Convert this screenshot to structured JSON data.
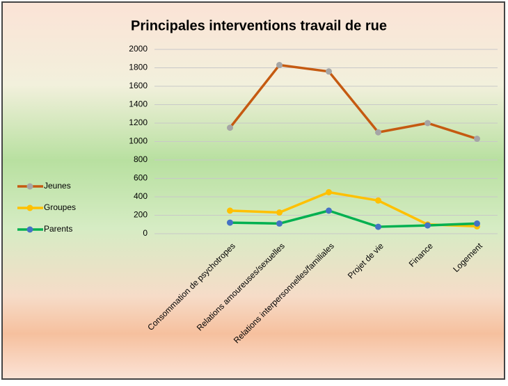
{
  "chart_data": {
    "type": "line",
    "title": "Principales interventions travail de rue",
    "categories": [
      "Consommation de psychotropes",
      "Relations amoureuses/sexuelles",
      "Relations interpersonnelles/familiales",
      "Projet de vie",
      "Finance",
      "Logement"
    ],
    "series": [
      {
        "name": "Jeunes",
        "color": "#c55a11",
        "marker_color": "#a5a5a5",
        "values": [
          1150,
          1830,
          1760,
          1100,
          1200,
          1030
        ]
      },
      {
        "name": "Groupes",
        "color": "#ffc000",
        "marker_color": "#ffc000",
        "values": [
          250,
          230,
          450,
          360,
          100,
          80
        ]
      },
      {
        "name": "Parents",
        "color": "#00b050",
        "marker_color": "#4472c4",
        "values": [
          120,
          110,
          250,
          75,
          90,
          110
        ]
      }
    ],
    "ylim": [
      0,
      2000
    ],
    "yticks": [
      0,
      200,
      400,
      600,
      800,
      1000,
      1200,
      1400,
      1600,
      1800,
      2000
    ],
    "grid": true,
    "legend": "left"
  }
}
